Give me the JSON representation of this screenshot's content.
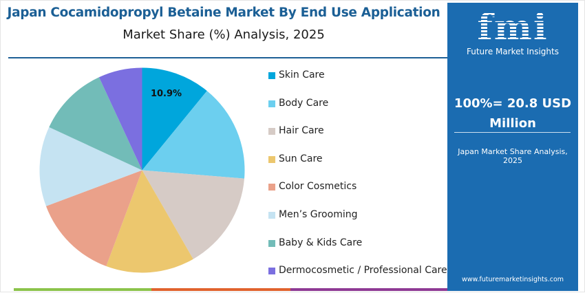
{
  "header": {
    "title": "Japan Cocamidopropyl Betaine Market By End Use Application",
    "subtitle": "Market Share (%) Analysis, 2025"
  },
  "chart_data": {
    "type": "pie",
    "categories": [
      "Skin Care",
      "Body Care",
      "Hair Care",
      "Sun Care",
      "Color Cosmetics",
      "Men’s Grooming",
      "Baby & Kids Care",
      "Dermocosmetic / Professional Care"
    ],
    "values": [
      10.9,
      15.4,
      15.4,
      14.0,
      13.6,
      12.6,
      11.2,
      6.9
    ],
    "colors": [
      "#00a6dc",
      "#6ccfef",
      "#d6cbc6",
      "#ecc76e",
      "#eaa18a",
      "#c5e3f2",
      "#72bcb8",
      "#7b6fe0"
    ],
    "data_labels": [
      "10.9%",
      "",
      "",
      "",
      "",
      "",
      "",
      ""
    ],
    "start": "top",
    "direction": "clockwise",
    "legend": "right"
  },
  "panel": {
    "logo_text": "fmi",
    "logo_sub": "Future Market Insights",
    "total": "100%= 20.8 USD Million",
    "caption": "Japan Market Share Analysis, 2025",
    "url": "www.futuremarketinsights.com",
    "color": "#1b6cb1"
  },
  "footer_stripe_colors": [
    "#8bc34a",
    "#e0622d",
    "#8e3a94"
  ]
}
